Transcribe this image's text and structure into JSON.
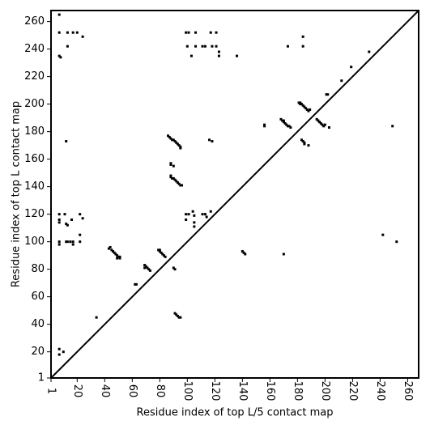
{
  "chart_data": {
    "type": "scatter",
    "xlabel": "Residue index of top L/5 contact map",
    "ylabel": "Residue index of top L contact map",
    "color": "#000000",
    "xlim": [
      1,
      268
    ],
    "ylim": [
      1,
      268
    ],
    "xticks": [
      1,
      20,
      40,
      60,
      80,
      100,
      120,
      140,
      160,
      180,
      200,
      220,
      240,
      260
    ],
    "yticks": [
      1,
      20,
      40,
      60,
      80,
      100,
      120,
      140,
      160,
      180,
      200,
      220,
      240,
      260
    ],
    "x": [
      7,
      7,
      13,
      17,
      20,
      24,
      7,
      8,
      13,
      99,
      101,
      106,
      117,
      121,
      100,
      106,
      111,
      113,
      118,
      121,
      123,
      123,
      103,
      136,
      173,
      184,
      184,
      219,
      212,
      232,
      201,
      202,
      181,
      182,
      183,
      184,
      185,
      186,
      187,
      188,
      189,
      182,
      168,
      169,
      170,
      171,
      172,
      173,
      174,
      175,
      170,
      156,
      156,
      194,
      195,
      196,
      197,
      198,
      199,
      200,
      203,
      249,
      183,
      184,
      185,
      185,
      188,
      86,
      87,
      88,
      89,
      90,
      91,
      92,
      93,
      94,
      95,
      95,
      88,
      88,
      90,
      88,
      88,
      89,
      90,
      91,
      92,
      93,
      94,
      95,
      96,
      116,
      118,
      12,
      7,
      7,
      7,
      11,
      12,
      13,
      16,
      12,
      13,
      15,
      17,
      17,
      7,
      7,
      22,
      24,
      22,
      22,
      99,
      101,
      99,
      104,
      105,
      105,
      105,
      111,
      113,
      114,
      117,
      43,
      44,
      45,
      46,
      47,
      48,
      49,
      50,
      51,
      49,
      51,
      69,
      70,
      71,
      72,
      73,
      69,
      62,
      63,
      79,
      80,
      81,
      82,
      83,
      84,
      80,
      90,
      91,
      91,
      92,
      93,
      94,
      95,
      140,
      141,
      142,
      170,
      242,
      252,
      34,
      7,
      7,
      10
    ],
    "values": [
      265,
      252,
      252,
      252,
      252,
      249,
      235,
      234,
      242,
      252,
      252,
      252,
      252,
      252,
      242,
      242,
      242,
      242,
      242,
      242,
      238,
      235,
      235,
      235,
      242,
      249,
      242,
      227,
      217,
      238,
      207,
      207,
      201,
      201,
      200,
      199,
      198,
      197,
      196,
      195,
      196,
      200,
      189,
      188,
      187,
      186,
      185,
      184,
      184,
      183,
      188,
      184,
      185,
      189,
      188,
      187,
      186,
      185,
      184,
      185,
      183,
      184,
      174,
      173,
      172,
      171,
      170,
      177,
      176,
      175,
      174,
      174,
      173,
      172,
      171,
      170,
      169,
      168,
      157,
      156,
      155,
      148,
      147,
      146,
      146,
      145,
      144,
      143,
      142,
      141,
      141,
      174,
      173,
      173,
      120,
      116,
      114,
      120,
      113,
      112,
      116,
      100,
      100,
      100,
      100,
      98,
      100,
      98,
      120,
      117,
      105,
      100,
      120,
      120,
      116,
      122,
      119,
      114,
      111,
      120,
      120,
      118,
      122,
      95,
      96,
      94,
      93,
      92,
      91,
      90,
      89,
      88,
      88,
      89,
      83,
      82,
      81,
      80,
      79,
      81,
      69,
      69,
      94,
      93,
      92,
      91,
      90,
      89,
      94,
      81,
      80,
      48,
      47,
      46,
      45,
      45,
      93,
      92,
      91,
      91,
      105,
      100,
      45,
      22,
      18,
      20
    ]
  }
}
